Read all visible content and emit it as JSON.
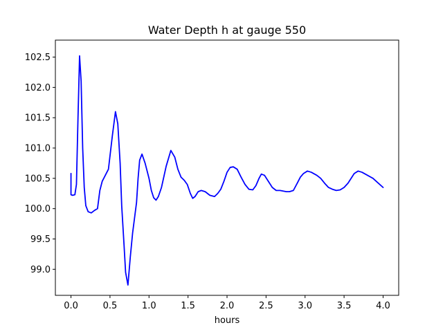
{
  "chart_data": {
    "type": "line",
    "title": "Water Depth h at gauge 550",
    "xlabel": "hours",
    "ylabel": "",
    "xlim": [
      -0.2,
      4.2
    ],
    "ylim": [
      98.57,
      102.78
    ],
    "xticks": [
      0.0,
      0.5,
      1.0,
      1.5,
      2.0,
      2.5,
      3.0,
      3.5,
      4.0
    ],
    "xtick_labels": [
      "0.0",
      "0.5",
      "1.0",
      "1.5",
      "2.0",
      "2.5",
      "3.0",
      "3.5",
      "4.0"
    ],
    "yticks": [
      99.0,
      99.5,
      100.0,
      100.5,
      101.0,
      101.5,
      102.0,
      102.5
    ],
    "ytick_labels": [
      "99.0",
      "99.5",
      "100.0",
      "100.5",
      "101.0",
      "101.5",
      "102.0",
      "102.5"
    ],
    "grid": false,
    "series": [
      {
        "color": "#0000ff",
        "x": [
          0.0,
          0.0,
          0.02,
          0.05,
          0.07,
          0.09,
          0.11,
          0.13,
          0.15,
          0.17,
          0.19,
          0.22,
          0.26,
          0.3,
          0.34,
          0.37,
          0.4,
          0.44,
          0.48,
          0.53,
          0.57,
          0.6,
          0.63,
          0.65,
          0.68,
          0.7,
          0.73,
          0.76,
          0.79,
          0.82,
          0.84,
          0.86,
          0.88,
          0.91,
          0.95,
          1.0,
          1.03,
          1.06,
          1.09,
          1.12,
          1.16,
          1.22,
          1.28,
          1.33,
          1.37,
          1.41,
          1.45,
          1.49,
          1.53,
          1.56,
          1.59,
          1.63,
          1.67,
          1.72,
          1.78,
          1.84,
          1.88,
          1.92,
          1.96,
          2.0,
          2.04,
          2.08,
          2.13,
          2.18,
          2.23,
          2.28,
          2.33,
          2.37,
          2.41,
          2.44,
          2.48,
          2.53,
          2.58,
          2.63,
          2.68,
          2.72,
          2.76,
          2.8,
          2.85,
          2.9,
          2.94,
          2.98,
          3.03,
          3.08,
          3.15,
          3.2,
          3.25,
          3.3,
          3.35,
          3.4,
          3.45,
          3.5,
          3.55,
          3.59,
          3.63,
          3.68,
          3.73,
          3.8,
          3.87,
          3.93,
          4.0
        ],
        "y": [
          100.58,
          100.23,
          100.22,
          100.23,
          100.4,
          101.5,
          102.52,
          102.1,
          101.0,
          100.35,
          100.05,
          99.95,
          99.93,
          99.97,
          100.0,
          100.3,
          100.45,
          100.55,
          100.65,
          101.2,
          101.6,
          101.4,
          100.75,
          100.05,
          99.4,
          98.95,
          98.74,
          99.2,
          99.6,
          99.9,
          100.1,
          100.5,
          100.8,
          100.9,
          100.75,
          100.5,
          100.3,
          100.18,
          100.14,
          100.2,
          100.35,
          100.7,
          100.96,
          100.85,
          100.65,
          100.52,
          100.47,
          100.4,
          100.25,
          100.17,
          100.2,
          100.28,
          100.3,
          100.28,
          100.22,
          100.2,
          100.25,
          100.32,
          100.45,
          100.6,
          100.68,
          100.69,
          100.65,
          100.52,
          100.4,
          100.32,
          100.31,
          100.38,
          100.5,
          100.57,
          100.55,
          100.45,
          100.35,
          100.3,
          100.3,
          100.29,
          100.28,
          100.28,
          100.3,
          100.42,
          100.52,
          100.58,
          100.62,
          100.6,
          100.55,
          100.5,
          100.42,
          100.35,
          100.32,
          100.3,
          100.31,
          100.35,
          100.42,
          100.5,
          100.58,
          100.62,
          100.6,
          100.55,
          100.5,
          100.43,
          100.35
        ]
      }
    ]
  }
}
